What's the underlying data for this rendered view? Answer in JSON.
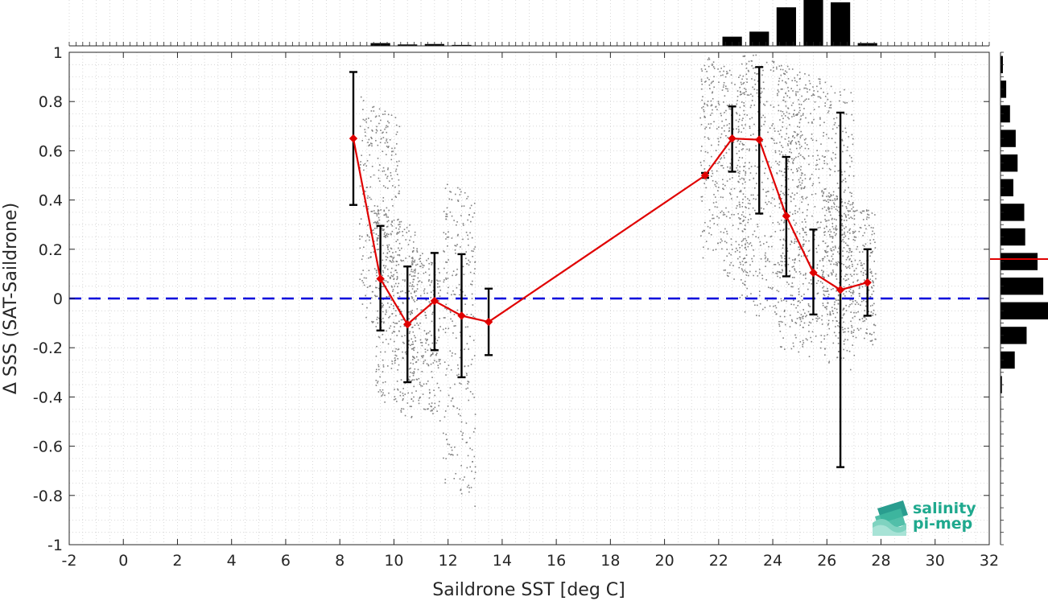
{
  "chart_data": {
    "type": "scatter",
    "xlabel": "Saildrone SST [deg C]",
    "ylabel": "Δ SSS (SAT-Saildrone)",
    "xlim": [
      -2,
      32
    ],
    "ylim": [
      -1,
      1
    ],
    "xticks": [
      "-2",
      "0",
      "2",
      "4",
      "6",
      "8",
      "10",
      "12",
      "14",
      "16",
      "18",
      "20",
      "22",
      "24",
      "26",
      "28",
      "30",
      "32"
    ],
    "yticks": [
      "-1",
      "-0.8",
      "-0.6",
      "-0.4",
      "-0.2",
      "0",
      "0.2",
      "0.4",
      "0.6",
      "0.8",
      "1"
    ],
    "grid": true,
    "zero_line": {
      "y": 0,
      "color": "#0000dd",
      "style": "dashed"
    },
    "binned_mean": {
      "color": "#e00000",
      "x": [
        8.5,
        9.5,
        10.5,
        11.5,
        12.5,
        13.5,
        21.5,
        22.5,
        23.5,
        24.5,
        25.5,
        26.5,
        27.5
      ],
      "y": [
        0.65,
        0.08,
        -0.105,
        -0.01,
        -0.07,
        -0.095,
        0.5,
        0.65,
        0.645,
        0.335,
        0.105,
        0.035,
        0.065
      ],
      "err_low": [
        0.38,
        -0.13,
        -0.34,
        -0.21,
        -0.32,
        -0.23,
        0.49,
        0.515,
        0.345,
        0.09,
        -0.065,
        -0.685,
        -0.07
      ],
      "err_high": [
        0.92,
        0.295,
        0.13,
        0.185,
        0.18,
        0.04,
        0.51,
        0.78,
        0.94,
        0.575,
        0.28,
        0.755,
        0.2
      ]
    },
    "scatter_clusters": [
      {
        "x_range": [
          8.7,
          10.2
        ],
        "y_top": 0.78,
        "y_bottom": -0.12
      },
      {
        "x_range": [
          9.3,
          10.8
        ],
        "y_top": 0.35,
        "y_bottom": -0.45
      },
      {
        "x_range": [
          10.5,
          11.7
        ],
        "y_top": 0.2,
        "y_bottom": -0.45
      },
      {
        "x_range": [
          11.8,
          13.0
        ],
        "y_top": 0.45,
        "y_bottom": -0.8
      },
      {
        "x_range": [
          21.3,
          23.0
        ],
        "y_top": 0.95,
        "y_bottom": 0.1
      },
      {
        "x_range": [
          22.7,
          25.2
        ],
        "y_top": 0.97,
        "y_bottom": -0.1
      },
      {
        "x_range": [
          24.2,
          27.0
        ],
        "y_top": 0.9,
        "y_bottom": -0.25
      },
      {
        "x_range": [
          25.8,
          27.8
        ],
        "y_top": 0.4,
        "y_bottom": -0.15
      }
    ],
    "scatter_color": "#808080",
    "top_histogram": {
      "x_centers": [
        8.5,
        9.5,
        10.5,
        11.5,
        12.5,
        13.5,
        22.5,
        23.5,
        24.5,
        25.5,
        26.5,
        27.5
      ],
      "relative_counts": [
        0.01,
        0.06,
        0.03,
        0.04,
        0.02,
        0.0,
        0.2,
        0.31,
        0.84,
        1.0,
        0.95,
        0.06
      ]
    },
    "right_histogram": {
      "y_centers": [
        0.95,
        0.85,
        0.75,
        0.65,
        0.55,
        0.45,
        0.35,
        0.25,
        0.15,
        0.05,
        -0.05,
        -0.15,
        -0.25,
        -0.35,
        -0.45,
        -0.55,
        -0.65
      ],
      "relative_counts": [
        0.05,
        0.12,
        0.2,
        0.32,
        0.36,
        0.27,
        0.5,
        0.52,
        0.78,
        0.9,
        1.0,
        0.55,
        0.3,
        0.03,
        0.01,
        0.01,
        0.01
      ]
    },
    "mean_marker": {
      "y": 0.16,
      "color": "#e00000"
    }
  },
  "logo": {
    "line1": "salinity",
    "line2": "pi-mep"
  }
}
